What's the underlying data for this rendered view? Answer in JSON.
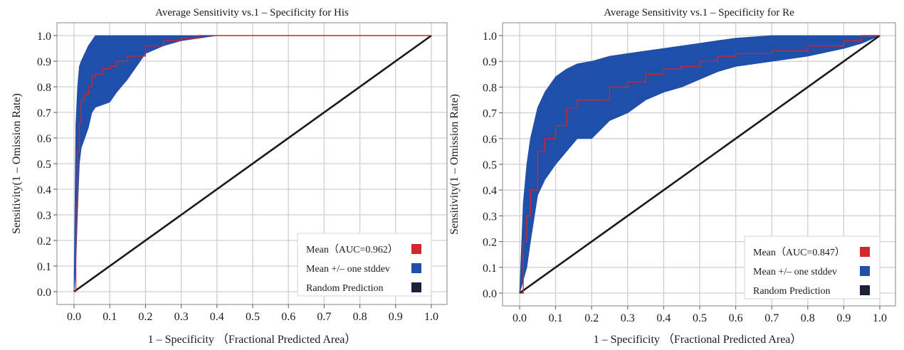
{
  "colors": {
    "mean": "#d0262e",
    "band": "#1f4fa8",
    "random": "#1a1a1a",
    "grid": "#cfcfcf",
    "legend_random": "#1b2236"
  },
  "chart_data": [
    {
      "type": "line",
      "title": "Average Sensitivity vs.1 – Specificity for His",
      "xlabel": "1 – Specificity （Fractional Predicted Area）",
      "ylabel": "Sensitivity(1 – Omission Rate)",
      "xlim": [
        0,
        1
      ],
      "ylim": [
        0,
        1
      ],
      "xticks": [
        "0.0",
        "0.1",
        "0.2",
        "0.3",
        "0.4",
        "0.5",
        "0.6",
        "0.7",
        "0.8",
        "0.9",
        "1.0"
      ],
      "yticks": [
        "0.0",
        "0.1",
        "0.2",
        "0.3",
        "0.4",
        "0.5",
        "0.6",
        "0.7",
        "0.8",
        "0.9",
        "1.0"
      ],
      "grid": true,
      "legend_position": "bottom-right",
      "legend": [
        "Mean（AUC=0.962）",
        "Mean +/– one stddev",
        "Random Prediction"
      ],
      "series": [
        {
          "name": "Mean（AUC=0.962）",
          "x": [
            0,
            0.005,
            0.01,
            0.015,
            0.02,
            0.03,
            0.04,
            0.05,
            0.06,
            0.08,
            0.1,
            0.12,
            0.15,
            0.2,
            0.25,
            0.3,
            0.35,
            0.4,
            1.0
          ],
          "y": [
            0,
            0.35,
            0.55,
            0.66,
            0.75,
            0.77,
            0.8,
            0.84,
            0.85,
            0.87,
            0.88,
            0.9,
            0.92,
            0.96,
            0.98,
            0.99,
            1.0,
            1.0,
            1.0
          ]
        },
        {
          "name": "Mean +/– one stddev",
          "x": [
            0,
            0.005,
            0.01,
            0.015,
            0.02,
            0.03,
            0.04,
            0.05,
            0.06,
            0.08,
            0.1,
            0.12,
            0.15,
            0.2,
            0.25,
            0.3,
            0.35,
            0.4,
            1.0
          ],
          "upper": [
            0,
            0.65,
            0.8,
            0.88,
            0.9,
            0.93,
            0.96,
            0.98,
            1.0,
            1.0,
            1.0,
            1.0,
            1.0,
            1.0,
            1.0,
            1.0,
            1.0,
            1.0,
            1.0
          ],
          "lower": [
            0,
            0.1,
            0.32,
            0.5,
            0.56,
            0.6,
            0.64,
            0.7,
            0.72,
            0.73,
            0.74,
            0.78,
            0.83,
            0.93,
            0.96,
            0.98,
            0.99,
            1.0,
            1.0
          ]
        },
        {
          "name": "Random Prediction",
          "x": [
            0,
            1
          ],
          "y": [
            0,
            1
          ]
        }
      ]
    },
    {
      "type": "line",
      "title": "Average Sensitivity vs.1 – Specificity for Re",
      "xlabel": "1 – Specificity （Fractional Predicted Area）",
      "ylabel": "Sensitivity(1 – Omission Rate)",
      "xlim": [
        0,
        1
      ],
      "ylim": [
        0,
        1
      ],
      "xticks": [
        "0.0",
        "0.1",
        "0.2",
        "0.3",
        "0.4",
        "0.5",
        "0.6",
        "0.7",
        "0.8",
        "0.9",
        "1.0"
      ],
      "yticks": [
        "0.0",
        "0.1",
        "0.2",
        "0.3",
        "0.4",
        "0.5",
        "0.6",
        "0.7",
        "0.8",
        "0.9",
        "1.0"
      ],
      "grid": true,
      "legend_position": "bottom-right",
      "legend": [
        "Mean（AUC=0.847）",
        "Mean +/– one stddev",
        "Random Prediction"
      ],
      "series": [
        {
          "name": "Mean（AUC=0.847）",
          "x": [
            0,
            0.01,
            0.02,
            0.03,
            0.05,
            0.07,
            0.1,
            0.13,
            0.16,
            0.2,
            0.25,
            0.3,
            0.35,
            0.4,
            0.45,
            0.5,
            0.55,
            0.6,
            0.7,
            0.8,
            0.9,
            0.95,
            1.0
          ],
          "y": [
            0,
            0.2,
            0.3,
            0.4,
            0.55,
            0.6,
            0.65,
            0.72,
            0.75,
            0.75,
            0.8,
            0.82,
            0.85,
            0.87,
            0.88,
            0.9,
            0.92,
            0.93,
            0.94,
            0.96,
            0.98,
            1.0,
            1.0
          ]
        },
        {
          "name": "Mean +/– one stddev",
          "x": [
            0,
            0.01,
            0.02,
            0.03,
            0.05,
            0.07,
            0.1,
            0.13,
            0.16,
            0.2,
            0.25,
            0.3,
            0.35,
            0.4,
            0.45,
            0.5,
            0.55,
            0.6,
            0.7,
            0.8,
            0.9,
            0.95,
            1.0
          ],
          "upper": [
            0,
            0.35,
            0.5,
            0.6,
            0.72,
            0.78,
            0.84,
            0.87,
            0.89,
            0.9,
            0.92,
            0.93,
            0.94,
            0.95,
            0.96,
            0.97,
            0.98,
            0.99,
            1.0,
            1.0,
            1.0,
            1.0,
            1.0
          ],
          "lower": [
            0,
            0.05,
            0.1,
            0.2,
            0.38,
            0.44,
            0.5,
            0.55,
            0.6,
            0.6,
            0.67,
            0.7,
            0.75,
            0.78,
            0.8,
            0.83,
            0.86,
            0.88,
            0.9,
            0.92,
            0.95,
            0.97,
            1.0
          ]
        },
        {
          "name": "Random Prediction",
          "x": [
            0,
            1
          ],
          "y": [
            0,
            1
          ]
        }
      ]
    }
  ]
}
